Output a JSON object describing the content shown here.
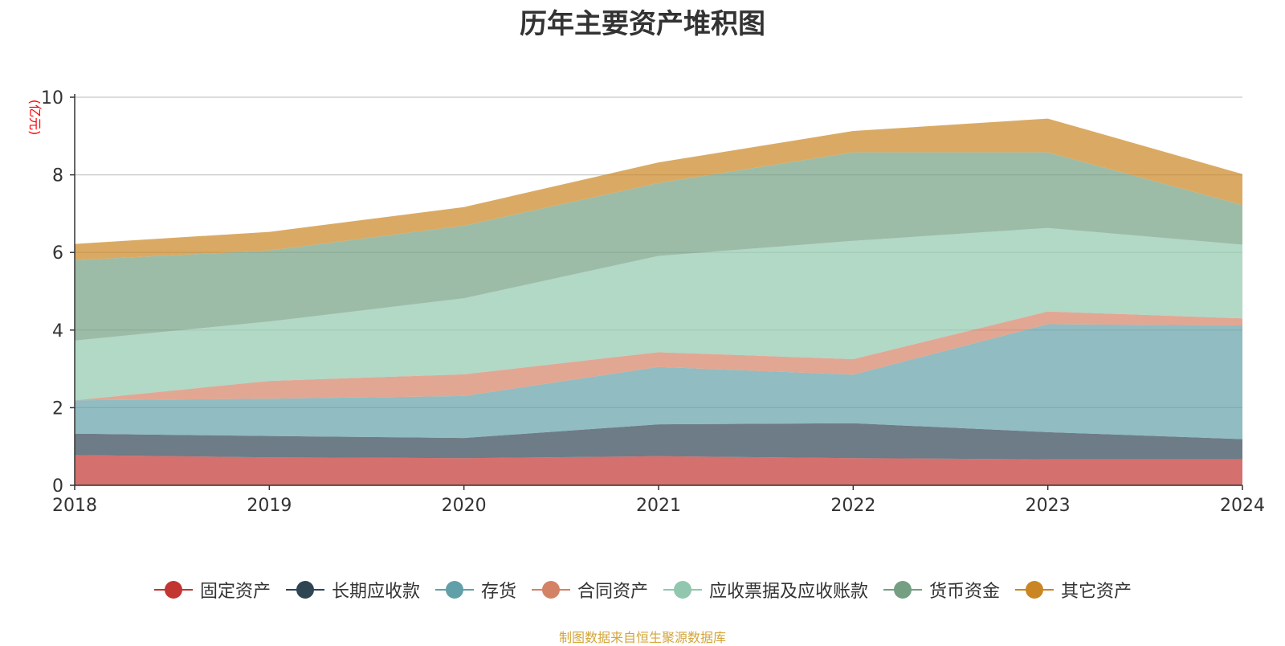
{
  "chart_data": {
    "type": "area",
    "stacked": true,
    "title": "历年主要资产堆积图",
    "ylabel": "(亿元)",
    "x": [
      "2018",
      "2019",
      "2020",
      "2021",
      "2022",
      "2023",
      "2024"
    ],
    "ylim": [
      0,
      10
    ],
    "yticks": [
      0,
      2,
      4,
      6,
      8,
      10
    ],
    "grid": true,
    "legend_position": "bottom",
    "series": [
      {
        "name": "固定资产",
        "color": "#c23531",
        "values": [
          0.78,
          0.72,
          0.7,
          0.75,
          0.7,
          0.67,
          0.67
        ]
      },
      {
        "name": "长期应收款",
        "color": "#2f4554",
        "values": [
          0.55,
          0.55,
          0.52,
          0.82,
          0.9,
          0.7,
          0.52
        ]
      },
      {
        "name": "存货",
        "color": "#61a0a8",
        "values": [
          0.86,
          0.96,
          1.08,
          1.48,
          1.25,
          2.78,
          2.93
        ]
      },
      {
        "name": "合同资产",
        "color": "#d48265",
        "values": [
          0.0,
          0.46,
          0.56,
          0.38,
          0.4,
          0.33,
          0.18
        ]
      },
      {
        "name": "应收票据及应收账款",
        "color": "#91c7ae",
        "values": [
          1.54,
          1.53,
          1.96,
          2.48,
          3.05,
          2.15,
          1.9
        ]
      },
      {
        "name": "货币资金",
        "color": "#749f83",
        "values": [
          2.07,
          1.83,
          1.87,
          1.88,
          2.28,
          1.95,
          1.02
        ]
      },
      {
        "name": "其它资产",
        "color": "#ca8622",
        "values": [
          0.42,
          0.48,
          0.48,
          0.53,
          0.55,
          0.87,
          0.8
        ]
      }
    ]
  },
  "source_note": "制图数据来自恒生聚源数据库"
}
